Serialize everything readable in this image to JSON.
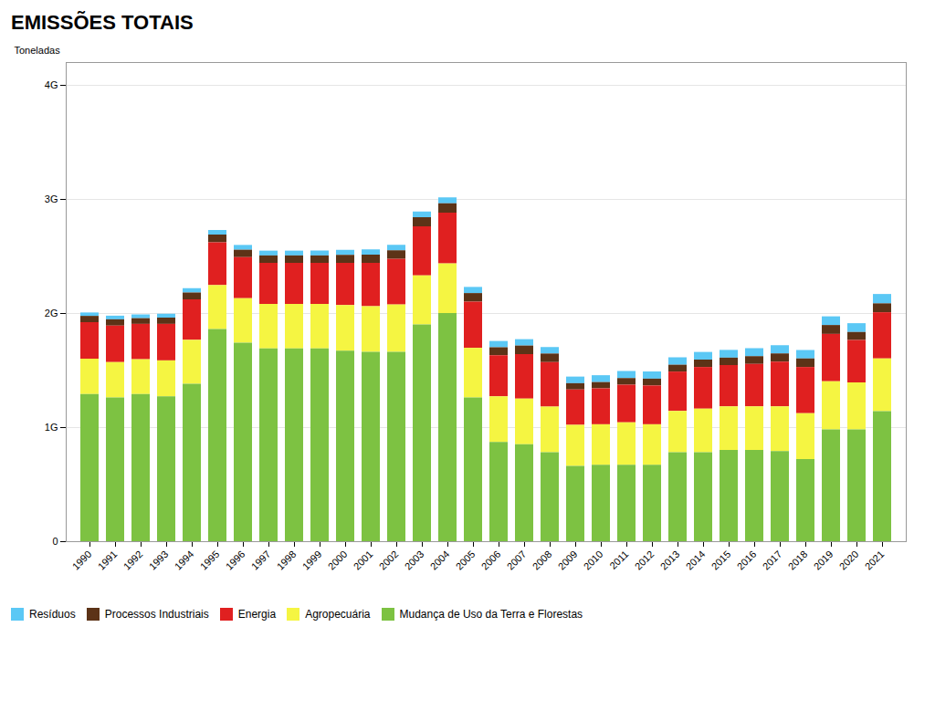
{
  "chart_data": {
    "type": "bar",
    "title": "EMISSÕES TOTAIS",
    "ylabel": "Toneladas",
    "stacked": true,
    "grid": true,
    "legend": "bottom",
    "categories": [
      1990,
      1991,
      1992,
      1993,
      1994,
      1995,
      1996,
      1997,
      1998,
      1999,
      2000,
      2001,
      2002,
      2003,
      2004,
      2005,
      2006,
      2007,
      2008,
      2009,
      2010,
      2011,
      2012,
      2013,
      2014,
      2015,
      2016,
      2017,
      2018,
      2019,
      2020,
      2021
    ],
    "series": [
      {
        "name": "Resíduos",
        "color": "#5bc8f5",
        "values": [
          0.03,
          0.032,
          0.033,
          0.034,
          0.038,
          0.04,
          0.042,
          0.042,
          0.042,
          0.043,
          0.044,
          0.046,
          0.048,
          0.05,
          0.052,
          0.054,
          0.055,
          0.056,
          0.057,
          0.058,
          0.06,
          0.062,
          0.063,
          0.065,
          0.067,
          0.068,
          0.07,
          0.072,
          0.074,
          0.076,
          0.077,
          0.082
        ]
      },
      {
        "name": "Processos Industriais",
        "color": "#5c3317",
        "values": [
          0.055,
          0.055,
          0.05,
          0.055,
          0.06,
          0.068,
          0.065,
          0.065,
          0.065,
          0.065,
          0.07,
          0.072,
          0.075,
          0.08,
          0.082,
          0.075,
          0.07,
          0.075,
          0.075,
          0.055,
          0.055,
          0.058,
          0.06,
          0.06,
          0.065,
          0.065,
          0.068,
          0.072,
          0.075,
          0.078,
          0.07,
          0.078
        ]
      },
      {
        "name": "Energia",
        "color": "#e02020",
        "values": [
          0.32,
          0.32,
          0.31,
          0.32,
          0.355,
          0.375,
          0.36,
          0.36,
          0.36,
          0.36,
          0.37,
          0.38,
          0.4,
          0.43,
          0.445,
          0.405,
          0.36,
          0.39,
          0.39,
          0.31,
          0.315,
          0.33,
          0.34,
          0.345,
          0.365,
          0.362,
          0.372,
          0.392,
          0.405,
          0.415,
          0.372,
          0.405
        ]
      },
      {
        "name": "Agropecuária",
        "color": "#f5f542",
        "values": [
          0.31,
          0.31,
          0.305,
          0.315,
          0.385,
          0.385,
          0.39,
          0.39,
          0.39,
          0.39,
          0.4,
          0.4,
          0.415,
          0.43,
          0.435,
          0.435,
          0.4,
          0.4,
          0.4,
          0.36,
          0.355,
          0.372,
          0.355,
          0.362,
          0.382,
          0.382,
          0.382,
          0.392,
          0.402,
          0.422,
          0.412,
          0.462
        ]
      },
      {
        "name": "Mudança de Uso da Terra e Florestas",
        "color": "#7dc242",
        "values": [
          1.29,
          1.26,
          1.29,
          1.27,
          1.38,
          1.86,
          1.74,
          1.69,
          1.69,
          1.69,
          1.67,
          1.66,
          1.66,
          1.9,
          2.0,
          1.26,
          0.87,
          0.85,
          0.78,
          0.66,
          0.67,
          0.67,
          0.67,
          0.78,
          0.78,
          0.8,
          0.8,
          0.79,
          0.72,
          0.98,
          0.98,
          1.14
        ]
      }
    ],
    "ylim": [
      0,
      4.2
    ],
    "yticks": [
      0,
      {
        "value": 1,
        "label": "1G"
      },
      {
        "value": 2,
        "label": "2G"
      },
      {
        "value": 3,
        "label": "3G"
      },
      {
        "value": 4,
        "label": "4G"
      }
    ]
  }
}
